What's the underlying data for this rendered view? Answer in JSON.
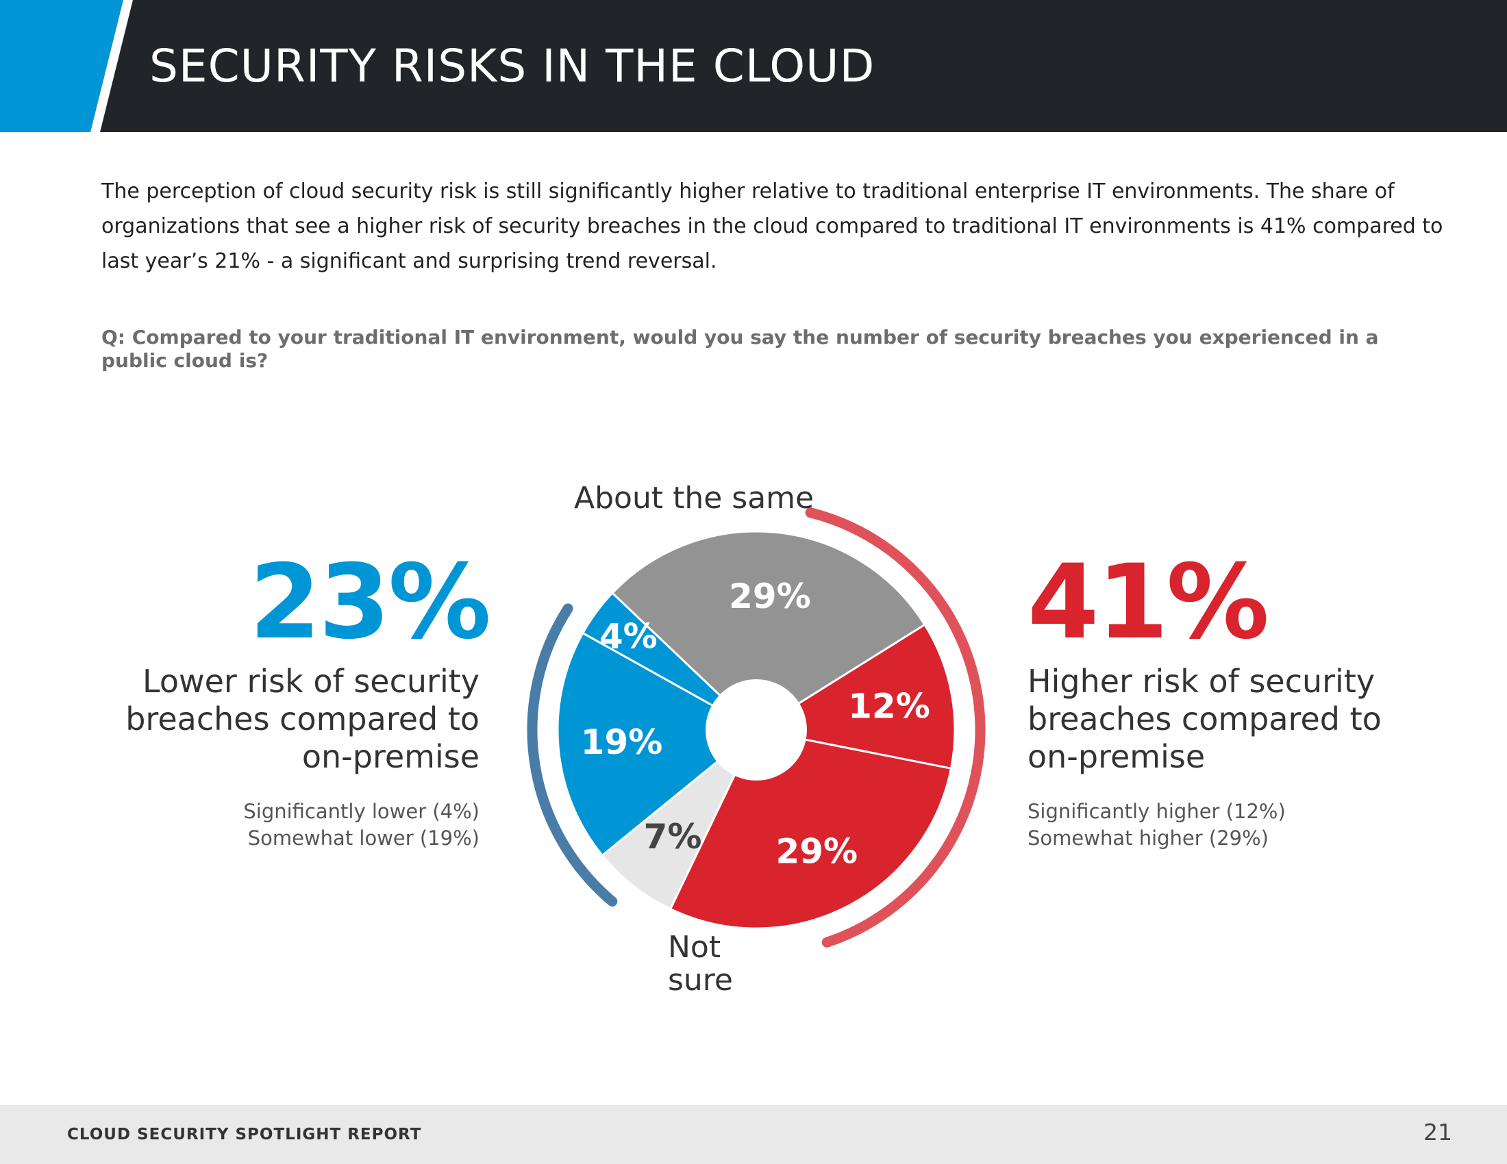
{
  "header": {
    "title": "SECURITY RISKS IN THE CLOUD",
    "brand_color": "#212529",
    "accent_color": "#0096d6"
  },
  "intro": "The perception of cloud security risk is still significantly higher relative to traditional enterprise IT environments. The share of organizations that see a higher risk of security breaches in the cloud compared to traditional IT environments is 41% compared to last year’s 21% - a significant and surprising trend reversal.",
  "question": "Q: Compared to your traditional IT environment, would you say the number of security breaches you experienced in a public cloud is?",
  "left_summary": {
    "value": "23%",
    "description": "Lower risk of security breaches compared to on-premise",
    "breakdown": [
      "Significantly lower (4%)",
      "Somewhat lower (19%)"
    ],
    "color": "#0096d6"
  },
  "right_summary": {
    "value": "41%",
    "description": "Higher risk of security breaches compared to on-premise",
    "breakdown": [
      "Significantly higher (12%)",
      "Somewhat higher (29%)"
    ],
    "color": "#d9232d"
  },
  "category_labels": {
    "same": "About the same",
    "not_sure": "Not sure"
  },
  "chart_data": {
    "type": "pie",
    "title": "",
    "slices": [
      {
        "name": "Significantly higher",
        "value": 12,
        "label": "12%",
        "color": "#d9232d"
      },
      {
        "name": "Somewhat higher",
        "value": 29,
        "label": "29%",
        "color": "#d9232d"
      },
      {
        "name": "Not sure",
        "value": 7,
        "label": "7%",
        "color": "#e6e6e6"
      },
      {
        "name": "Somewhat lower",
        "value": 19,
        "label": "19%",
        "color": "#0096d6"
      },
      {
        "name": "Significantly lower",
        "value": 4,
        "label": "4%",
        "color": "#0096d6"
      },
      {
        "name": "About the same",
        "value": 29,
        "label": "29%",
        "color": "#939393"
      }
    ],
    "groups": [
      {
        "name": "Lower risk",
        "value": 23,
        "color": "#4a7ca8"
      },
      {
        "name": "Higher risk",
        "value": 41,
        "color": "#e0525a"
      }
    ]
  },
  "footer": {
    "report_name": "CLOUD SECURITY SPOTLIGHT REPORT",
    "page_number": "21"
  }
}
